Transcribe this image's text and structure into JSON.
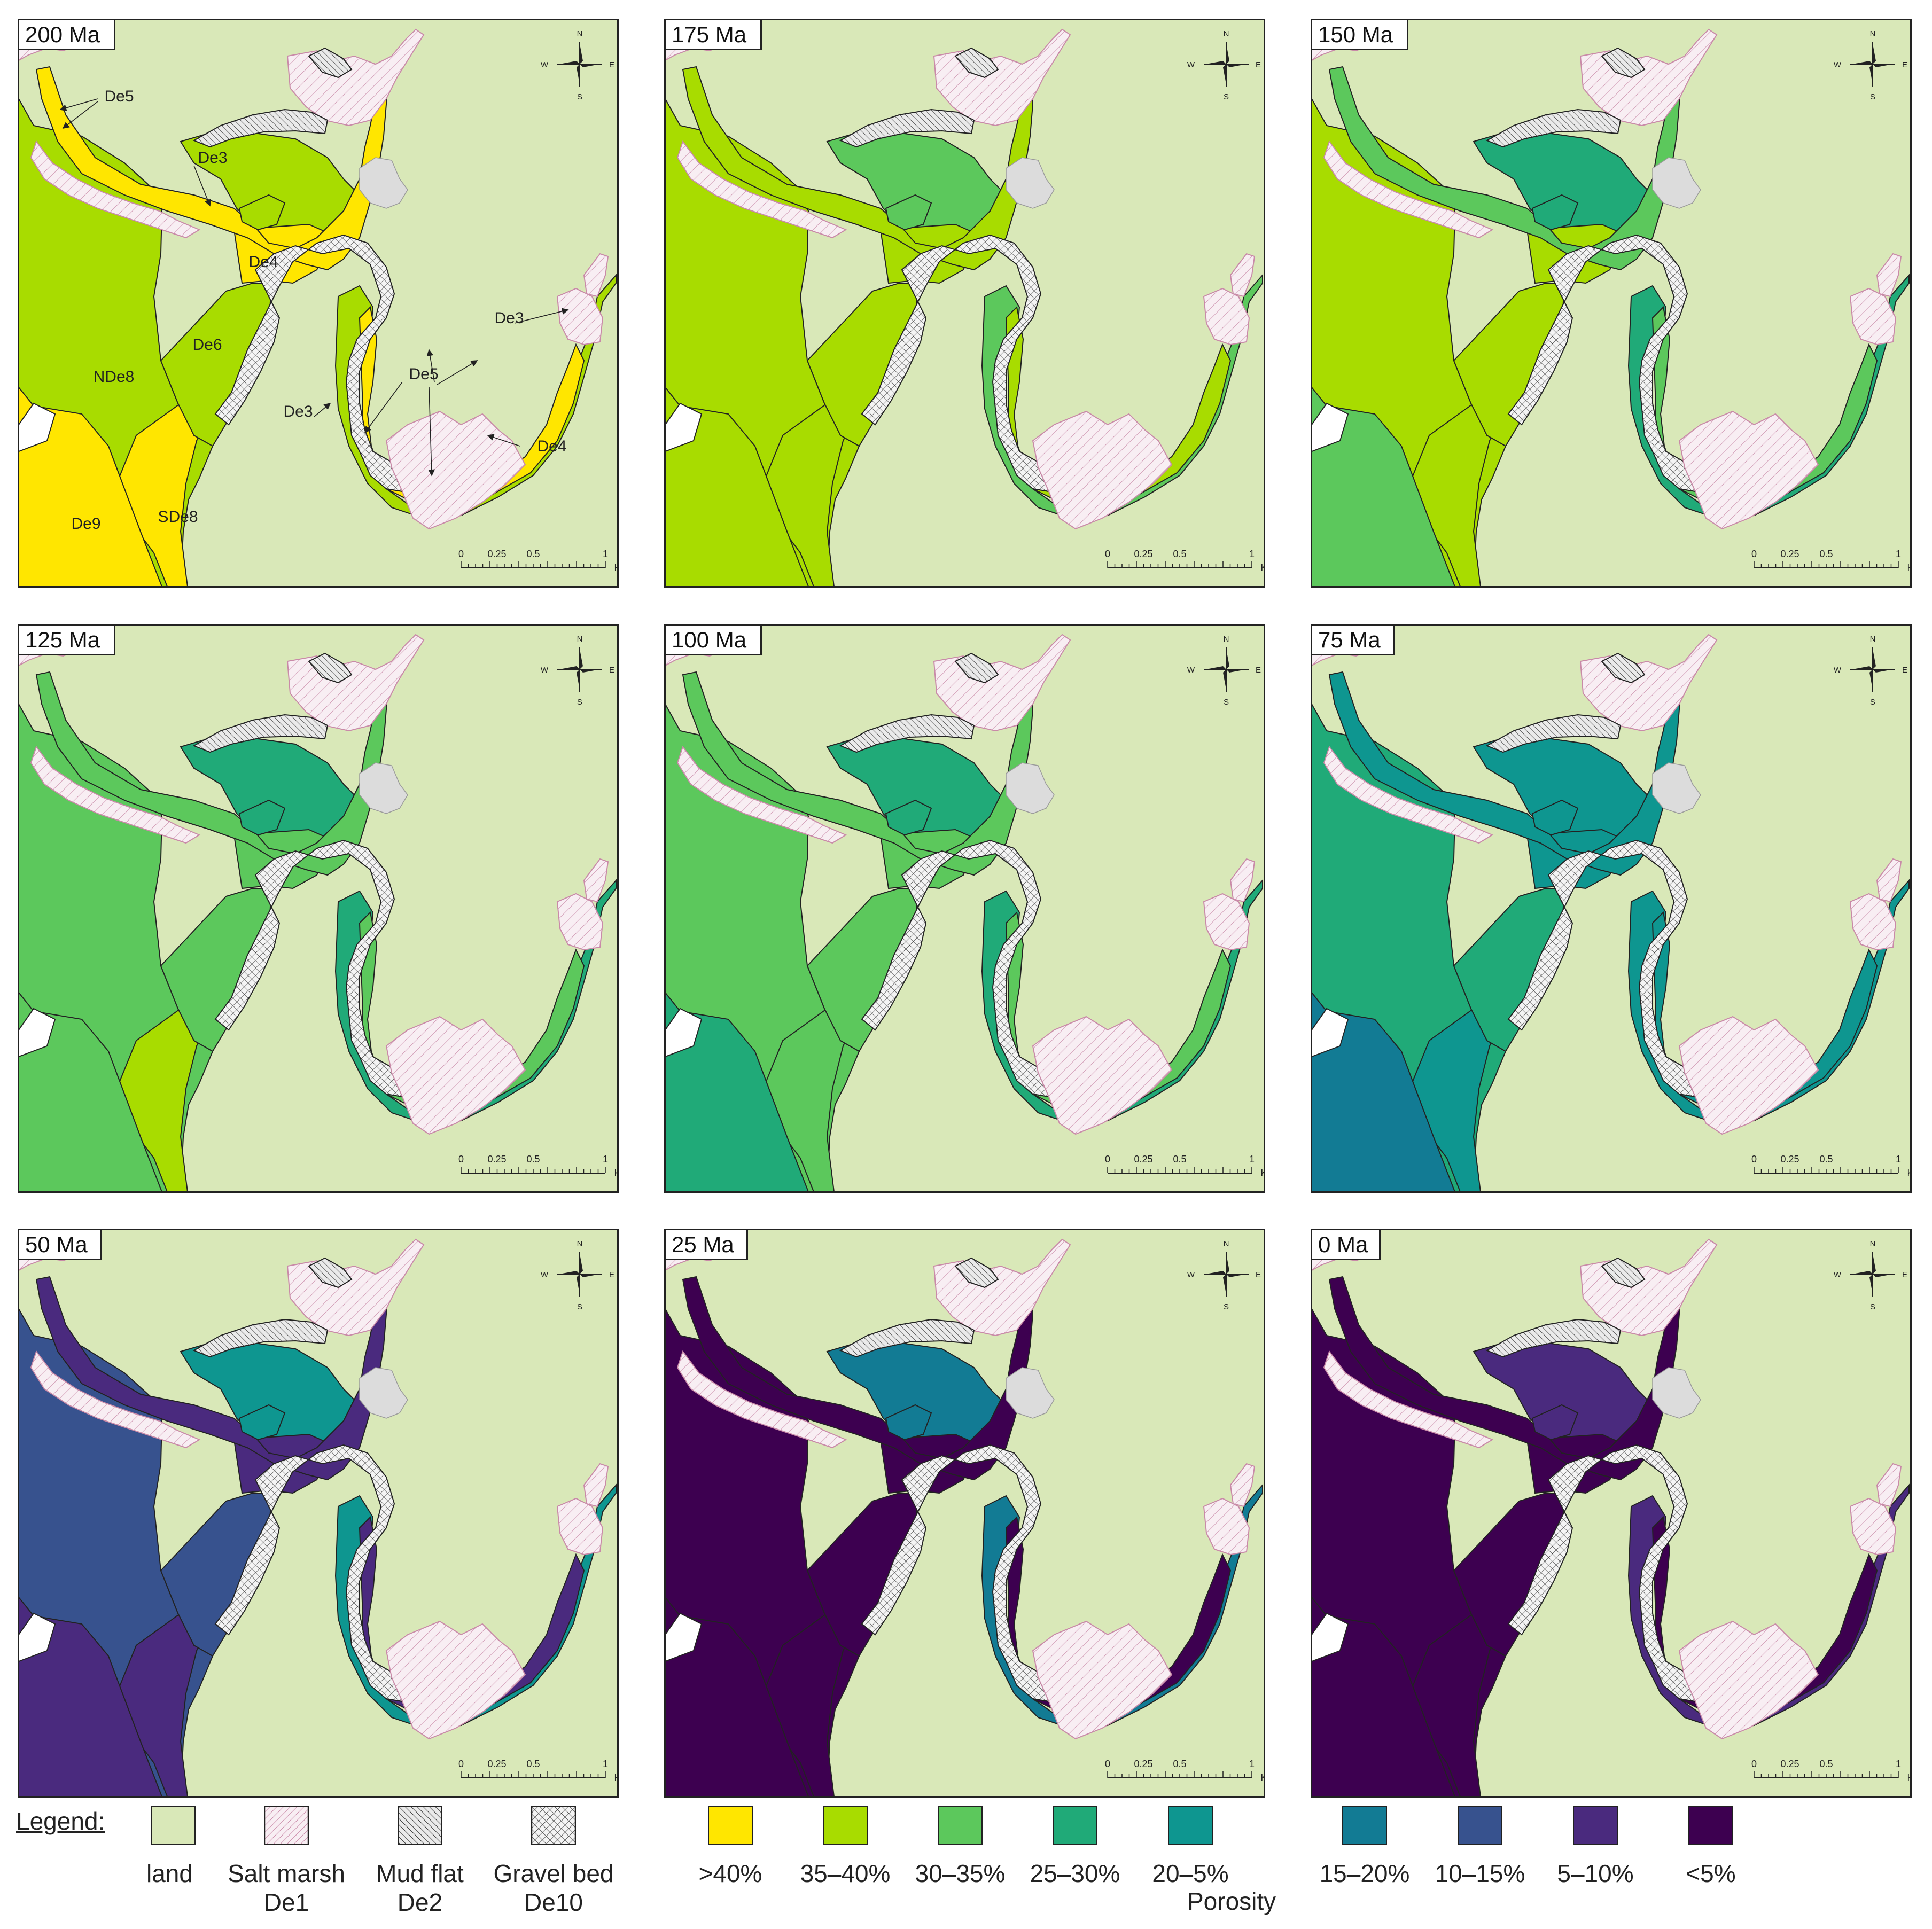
{
  "colors": {
    "land": "#d9e8b8",
    "outline": "#222222",
    "salt_marsh_line": "#c98aa8",
    "salt_marsh_bg": "#f8eef3",
    "mud_flat_bg": "#eaeaea",
    "gravel_bg": "#f4f4f4",
    "hatch": "#333333",
    "grey_patch": "#dcdcdc",
    "porosity": [
      "#ffe600",
      "#a8dc00",
      "#5cc85c",
      "#20aa78",
      "#0e9690",
      "#127b94",
      "#37528e",
      "#4a2a7e",
      "#3d0050"
    ]
  },
  "porosity_classes": [
    ">40%",
    "35–40%",
    "30–35%",
    "25–30%",
    "20–5%",
    "15–20%",
    "10–15%",
    "5–10%",
    "<5%"
  ],
  "panels": [
    {
      "age": "200 Ma",
      "fills": {
        "ndez8": 1,
        "sde8": 0,
        "de9": 0,
        "de6": 1,
        "de4": 0,
        "de3": 1,
        "de5": 0,
        "rch": 1,
        "channel": 0,
        "lake": 1
      }
    },
    {
      "age": "175 Ma",
      "fills": {
        "ndez8": 1,
        "sde8": 1,
        "de9": 1,
        "de6": 1,
        "de4": 1,
        "de3": 2,
        "de5": 1,
        "rch": 2,
        "channel": 1,
        "lake": 2
      }
    },
    {
      "age": "150 Ma",
      "fills": {
        "ndez8": 1,
        "sde8": 1,
        "de9": 2,
        "de6": 1,
        "de4": 1,
        "de3": 3,
        "de5": 2,
        "rch": 3,
        "channel": 2,
        "lake": 3
      }
    },
    {
      "age": "125 Ma",
      "fills": {
        "ndez8": 2,
        "sde8": 1,
        "de9": 2,
        "de6": 2,
        "de4": 2,
        "de3": 3,
        "de5": 2,
        "rch": 3,
        "channel": 2,
        "lake": 3
      }
    },
    {
      "age": "100 Ma",
      "fills": {
        "ndez8": 2,
        "sde8": 2,
        "de9": 3,
        "de6": 2,
        "de4": 2,
        "de3": 3,
        "de5": 2,
        "rch": 3,
        "channel": 2,
        "lake": 3
      }
    },
    {
      "age": "75 Ma",
      "fills": {
        "ndez8": 3,
        "sde8": 4,
        "de9": 5,
        "de6": 3,
        "de4": 4,
        "de3": 4,
        "de5": 4,
        "rch": 4,
        "channel": 4,
        "lake": 4
      }
    },
    {
      "age": "50 Ma",
      "fills": {
        "ndez8": 6,
        "sde8": 7,
        "de9": 7,
        "de6": 6,
        "de4": 7,
        "de3": 4,
        "de5": 7,
        "rch": 4,
        "channel": 7,
        "lake": 4
      }
    },
    {
      "age": "25 Ma",
      "fills": {
        "ndez8": 8,
        "sde8": 8,
        "de9": 8,
        "de6": 8,
        "de4": 8,
        "de3": 5,
        "de5": 8,
        "rch": 5,
        "channel": 8,
        "lake": 5
      }
    },
    {
      "age": "0 Ma",
      "fills": {
        "ndez8": 8,
        "sde8": 8,
        "de9": 8,
        "de6": 8,
        "de4": 8,
        "de3": 7,
        "de5": 8,
        "rch": 7,
        "channel": 8,
        "lake": 7
      }
    }
  ],
  "labels": {
    "De5": "De5",
    "De3": "De3",
    "De4": "De4",
    "De6": "De6",
    "NDe8": "NDe8",
    "SDe8": "SDe8",
    "De9": "De9"
  },
  "compass": {
    "n": "N",
    "s": "S",
    "e": "E",
    "w": "W"
  },
  "scalebar": {
    "ticks": [
      "0",
      "0.25",
      "0.5",
      "1"
    ],
    "unit": "Km"
  },
  "legend": {
    "title": "Legend:",
    "land": "land",
    "salt_marsh": [
      "Salt marsh",
      "De1"
    ],
    "mud_flat": [
      "Mud flat",
      "De2"
    ],
    "gravel_bed": [
      "Gravel bed",
      "De10"
    ],
    "porosity_caption": "Porosity"
  }
}
